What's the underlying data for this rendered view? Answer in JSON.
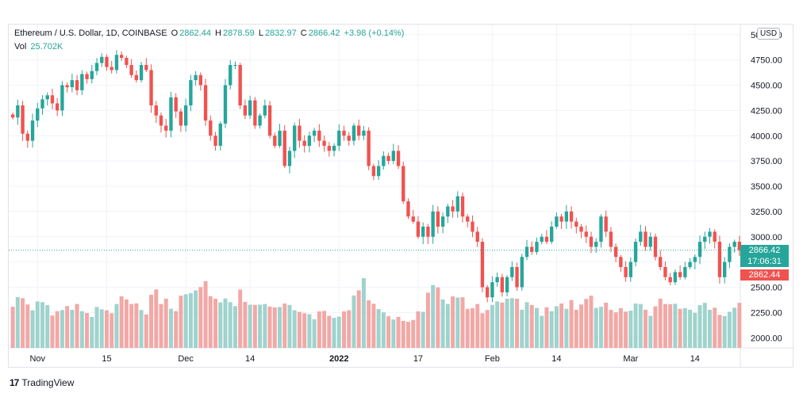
{
  "header": {
    "symbol": "Ethereum / U.S. Dollar, 1D, COINBASE",
    "o_label": "O",
    "o_value": "2862.44",
    "h_label": "H",
    "h_value": "2878.59",
    "l_label": "L",
    "l_value": "2832.97",
    "c_label": "C",
    "c_value": "2866.42",
    "change": "+3.98 (+0.14%)",
    "vol_label": "Vol",
    "vol_value": "25.702K"
  },
  "currency": "USD",
  "price_tags": {
    "last": "2866.42",
    "countdown": "17:06:31",
    "open": "2862.44"
  },
  "footer": {
    "brand": "TradingView"
  },
  "colors": {
    "up": "#26a69a",
    "down": "#ef5350",
    "vol_up": "#9fd3cd",
    "vol_down": "#f2a8a6"
  },
  "chart_data": {
    "type": "candlestick",
    "ylim": [
      1900,
      5100
    ],
    "y_ticks": [
      "2000.00",
      "2250.00",
      "2500.00",
      "2750.00",
      "3000.00",
      "3250.00",
      "3500.00",
      "3750.00",
      "4000.00",
      "4250.00",
      "4500.00",
      "4750.00",
      "5000.00"
    ],
    "x_ticks": [
      {
        "label": "Nov",
        "index": 5
      },
      {
        "label": "15",
        "index": 19
      },
      {
        "label": "Dec",
        "index": 35
      },
      {
        "label": "14",
        "index": 48
      },
      {
        "label": "2022",
        "index": 66
      },
      {
        "label": "17",
        "index": 82
      },
      {
        "label": "Feb",
        "index": 97
      },
      {
        "label": "14",
        "index": 110
      },
      {
        "label": "Mar",
        "index": 125
      },
      {
        "label": "14",
        "index": 138
      }
    ],
    "closes": [
      4180,
      4300,
      4020,
      3950,
      4150,
      4270,
      4360,
      4400,
      4320,
      4250,
      4500,
      4480,
      4550,
      4450,
      4610,
      4560,
      4640,
      4720,
      4780,
      4680,
      4650,
      4800,
      4770,
      4700,
      4600,
      4550,
      4700,
      4650,
      4300,
      4200,
      4100,
      4050,
      4380,
      4240,
      4100,
      4300,
      4550,
      4600,
      4500,
      4150,
      4000,
      3900,
      4120,
      4500,
      4700,
      4700,
      4300,
      4200,
      4350,
      4100,
      4200,
      4300,
      4000,
      3900,
      4050,
      3700,
      3850,
      4100,
      3950,
      3900,
      4000,
      4050,
      3950,
      3900,
      3850,
      3900,
      4050,
      4000,
      3950,
      4100,
      4000,
      4050,
      3700,
      3600,
      3700,
      3800,
      3750,
      3850,
      3700,
      3350,
      3200,
      3150,
      3000,
      3100,
      3000,
      3250,
      3100,
      3200,
      3300,
      3250,
      3400,
      3200,
      3150,
      3050,
      2950,
      2500,
      2400,
      2550,
      2600,
      2450,
      2600,
      2700,
      2500,
      2800,
      2900,
      2850,
      2950,
      3000,
      2950,
      3100,
      3200,
      3150,
      3250,
      3150,
      3100,
      3050,
      3000,
      2900,
      2950,
      3200,
      3050,
      2900,
      2800,
      2700,
      2600,
      2750,
      2950,
      3050,
      2900,
      3000,
      2800,
      2700,
      2600,
      2550,
      2650,
      2600,
      2700,
      2750,
      2800,
      2950,
      3000,
      3050,
      2950,
      2600,
      2750,
      2900,
      2950,
      2866.42
    ],
    "volumes": [
      178,
      220,
      215,
      188,
      163,
      201,
      198,
      185,
      140,
      159,
      164,
      181,
      165,
      190,
      159,
      151,
      134,
      177,
      167,
      163,
      150,
      190,
      223,
      210,
      190,
      193,
      164,
      145,
      230,
      253,
      190,
      213,
      169,
      159,
      226,
      232,
      237,
      249,
      263,
      289,
      224,
      213,
      197,
      214,
      198,
      181,
      252,
      199,
      187,
      186,
      187,
      190,
      179,
      175,
      177,
      192,
      186,
      163,
      156,
      150,
      146,
      124,
      158,
      160,
      139,
      130,
      135,
      158,
      163,
      227,
      249,
      302,
      206,
      191,
      168,
      154,
      137,
      123,
      134,
      117,
      113,
      121,
      158,
      156,
      239,
      272,
      262,
      210,
      190,
      223,
      218,
      219,
      169,
      172,
      190,
      150,
      164,
      186,
      201,
      196,
      213,
      215,
      213,
      165,
      198,
      186,
      173,
      139,
      176,
      159,
      180,
      192,
      169,
      207,
      165,
      188,
      212,
      226,
      173,
      178,
      196,
      165,
      154,
      172,
      157,
      161,
      192,
      190,
      165,
      139,
      180,
      213,
      190,
      189,
      191,
      169,
      172,
      165,
      152,
      185,
      195,
      165,
      174,
      143,
      138,
      156,
      174,
      195,
      192,
      162
    ]
  }
}
